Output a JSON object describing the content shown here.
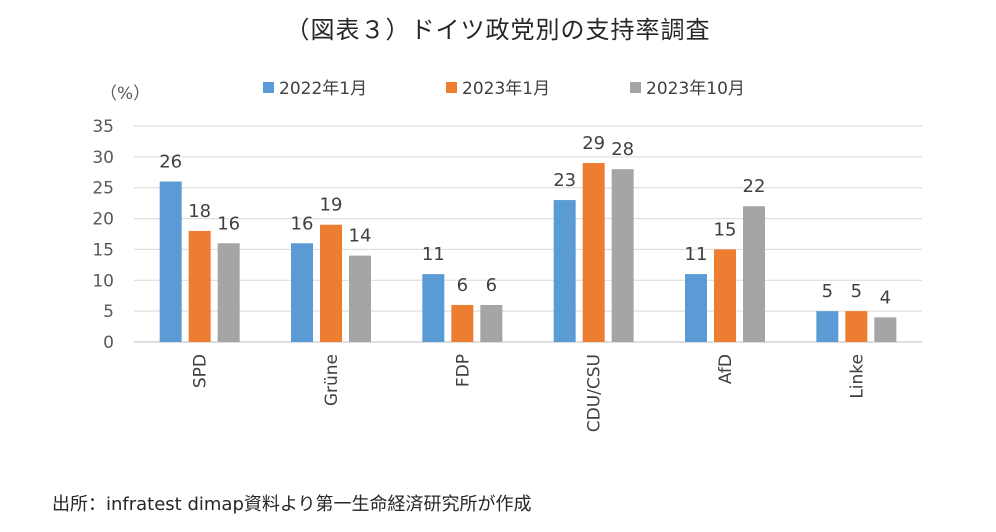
{
  "colors": {
    "series": [
      "#5b9bd5",
      "#ed7d31",
      "#a5a5a5"
    ],
    "grid": "#d9d9d9",
    "axis": "#bfbfbf"
  },
  "chart_data": {
    "type": "bar",
    "title": "（図表３）ドイツ政党別の支持率調査",
    "ylabel": "（%）",
    "xlabel": "",
    "categories": [
      "SPD",
      "Grüne",
      "FDP",
      "CDU/CSU",
      "AfD",
      "Linke"
    ],
    "series": [
      {
        "name": "2022年1月",
        "values": [
          26,
          16,
          11,
          23,
          11,
          5
        ]
      },
      {
        "name": "2023年1月",
        "values": [
          18,
          19,
          6,
          29,
          15,
          5
        ]
      },
      {
        "name": "2023年10月",
        "values": [
          16,
          14,
          6,
          28,
          22,
          4
        ]
      }
    ],
    "ylim": [
      0,
      35
    ],
    "yticks": [
      0,
      5,
      10,
      15,
      20,
      25,
      30,
      35
    ],
    "grid": true,
    "legend": "top-center",
    "data_labels": true
  },
  "source": "出所：infratest dimap資料より第一生命経済研究所が作成"
}
